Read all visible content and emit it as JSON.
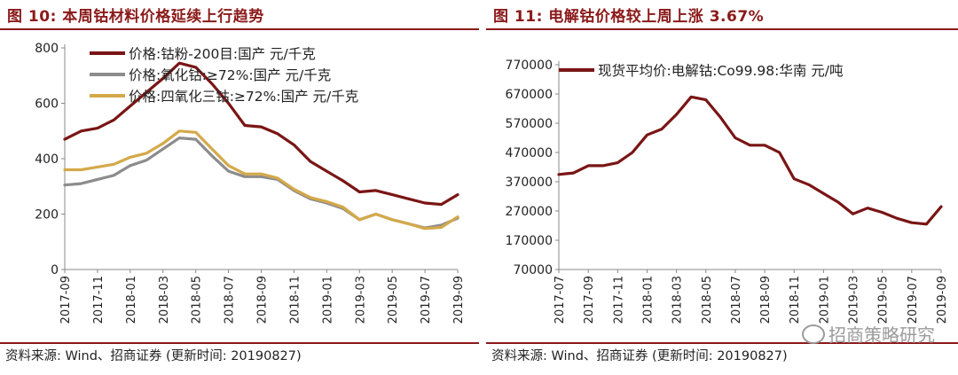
{
  "left": {
    "title": "图 10:  本周钴材料价格延续上行趋势",
    "source": "资料来源: Wind、招商证券 (更新时间: 20190827)"
  },
  "right": {
    "title": "图 11:  电解钴价格较上周上涨 3.67%",
    "source": "资料来源: Wind、招商证券 (更新时间: 20190827)"
  },
  "watermark": "招商策略研究",
  "chart_data": [
    {
      "type": "line",
      "xlim": [
        "2017-09",
        "2019-09"
      ],
      "ylim": [
        0,
        800
      ],
      "yticks": [
        0,
        200,
        400,
        600,
        800
      ],
      "ytick_labels": [
        "0",
        "200",
        "400",
        "600",
        "800"
      ],
      "xtick_labels": [
        "2017-09",
        "2017-11",
        "2018-01",
        "2018-03",
        "2018-05",
        "2018-07",
        "2018-09",
        "2018-11",
        "2019-01",
        "2019-03",
        "2019-05",
        "2019-07",
        "2019-09"
      ],
      "legend_position": "top-left",
      "grid": false,
      "series": [
        {
          "name": "价格:钴粉-200目:国产 元/千克",
          "color": "#7a1515",
          "points": [
            [
              "2017-09",
              470
            ],
            [
              "2017-10",
              500
            ],
            [
              "2017-11",
              510
            ],
            [
              "2017-12",
              540
            ],
            [
              "2018-01",
              590
            ],
            [
              "2018-02",
              640
            ],
            [
              "2018-03",
              690
            ],
            [
              "2018-04",
              745
            ],
            [
              "2018-05",
              730
            ],
            [
              "2018-06",
              670
            ],
            [
              "2018-07",
              600
            ],
            [
              "2018-08",
              520
            ],
            [
              "2018-09",
              515
            ],
            [
              "2018-10",
              490
            ],
            [
              "2018-11",
              450
            ],
            [
              "2018-12",
              390
            ],
            [
              "2019-01",
              355
            ],
            [
              "2019-02",
              320
            ],
            [
              "2019-03",
              280
            ],
            [
              "2019-04",
              285
            ],
            [
              "2019-05",
              270
            ],
            [
              "2019-06",
              255
            ],
            [
              "2019-07",
              240
            ],
            [
              "2019-08",
              235
            ],
            [
              "2019-09",
              270
            ]
          ]
        },
        {
          "name": "价格:氧化钴:≥72%:国产 元/千克",
          "color": "#8c8c8c",
          "points": [
            [
              "2017-09",
              305
            ],
            [
              "2017-10",
              310
            ],
            [
              "2017-11",
              325
            ],
            [
              "2017-12",
              340
            ],
            [
              "2018-01",
              375
            ],
            [
              "2018-02",
              395
            ],
            [
              "2018-03",
              435
            ],
            [
              "2018-04",
              475
            ],
            [
              "2018-05",
              470
            ],
            [
              "2018-06",
              410
            ],
            [
              "2018-07",
              355
            ],
            [
              "2018-08",
              335
            ],
            [
              "2018-09",
              335
            ],
            [
              "2018-10",
              325
            ],
            [
              "2018-11",
              285
            ],
            [
              "2018-12",
              255
            ],
            [
              "2019-01",
              240
            ],
            [
              "2019-02",
              220
            ],
            [
              "2019-03",
              180
            ],
            [
              "2019-04",
              200
            ],
            [
              "2019-05",
              180
            ],
            [
              "2019-06",
              165
            ],
            [
              "2019-07",
              150
            ],
            [
              "2019-08",
              160
            ],
            [
              "2019-09",
              185
            ]
          ]
        },
        {
          "name": "价格:四氧化三钴:≥72%:国产 元/千克",
          "color": "#d4a94a",
          "points": [
            [
              "2017-09",
              360
            ],
            [
              "2017-10",
              360
            ],
            [
              "2017-11",
              370
            ],
            [
              "2017-12",
              380
            ],
            [
              "2018-01",
              405
            ],
            [
              "2018-02",
              420
            ],
            [
              "2018-03",
              455
            ],
            [
              "2018-04",
              500
            ],
            [
              "2018-05",
              495
            ],
            [
              "2018-06",
              435
            ],
            [
              "2018-07",
              375
            ],
            [
              "2018-08",
              345
            ],
            [
              "2018-09",
              345
            ],
            [
              "2018-10",
              330
            ],
            [
              "2018-11",
              290
            ],
            [
              "2018-12",
              260
            ],
            [
              "2019-01",
              245
            ],
            [
              "2019-02",
              225
            ],
            [
              "2019-03",
              180
            ],
            [
              "2019-04",
              200
            ],
            [
              "2019-05",
              180
            ],
            [
              "2019-06",
              165
            ],
            [
              "2019-07",
              148
            ],
            [
              "2019-08",
              152
            ],
            [
              "2019-09",
              190
            ]
          ]
        }
      ]
    },
    {
      "type": "line",
      "xlim": [
        "2017-07",
        "2019-09"
      ],
      "ylim": [
        70000,
        770000
      ],
      "yticks": [
        70000,
        170000,
        270000,
        370000,
        470000,
        570000,
        670000,
        770000
      ],
      "ytick_labels": [
        "70000",
        "170000",
        "270000",
        "370000",
        "470000",
        "570000",
        "670000",
        "770000"
      ],
      "xtick_labels": [
        "2017-07",
        "2017-09",
        "2017-11",
        "2018-01",
        "2018-03",
        "2018-05",
        "2018-07",
        "2018-09",
        "2018-11",
        "2019-01",
        "2019-03",
        "2019-05",
        "2019-07",
        "2019-09"
      ],
      "legend_position": "top-left",
      "grid": false,
      "series": [
        {
          "name": "现货平均价:电解钴:Co99.98:华南 元/吨",
          "color": "#7a1515",
          "points": [
            [
              "2017-07",
              395000
            ],
            [
              "2017-08",
              400000
            ],
            [
              "2017-09",
              425000
            ],
            [
              "2017-10",
              425000
            ],
            [
              "2017-11",
              435000
            ],
            [
              "2017-12",
              470000
            ],
            [
              "2018-01",
              530000
            ],
            [
              "2018-02",
              550000
            ],
            [
              "2018-03",
              600000
            ],
            [
              "2018-04",
              660000
            ],
            [
              "2018-05",
              650000
            ],
            [
              "2018-06",
              590000
            ],
            [
              "2018-07",
              520000
            ],
            [
              "2018-08",
              495000
            ],
            [
              "2018-09",
              495000
            ],
            [
              "2018-10",
              470000
            ],
            [
              "2018-11",
              380000
            ],
            [
              "2018-12",
              360000
            ],
            [
              "2019-01",
              330000
            ],
            [
              "2019-02",
              300000
            ],
            [
              "2019-03",
              260000
            ],
            [
              "2019-04",
              280000
            ],
            [
              "2019-05",
              265000
            ],
            [
              "2019-06",
              245000
            ],
            [
              "2019-07",
              230000
            ],
            [
              "2019-08",
              225000
            ],
            [
              "2019-09",
              285000
            ]
          ]
        }
      ]
    }
  ]
}
